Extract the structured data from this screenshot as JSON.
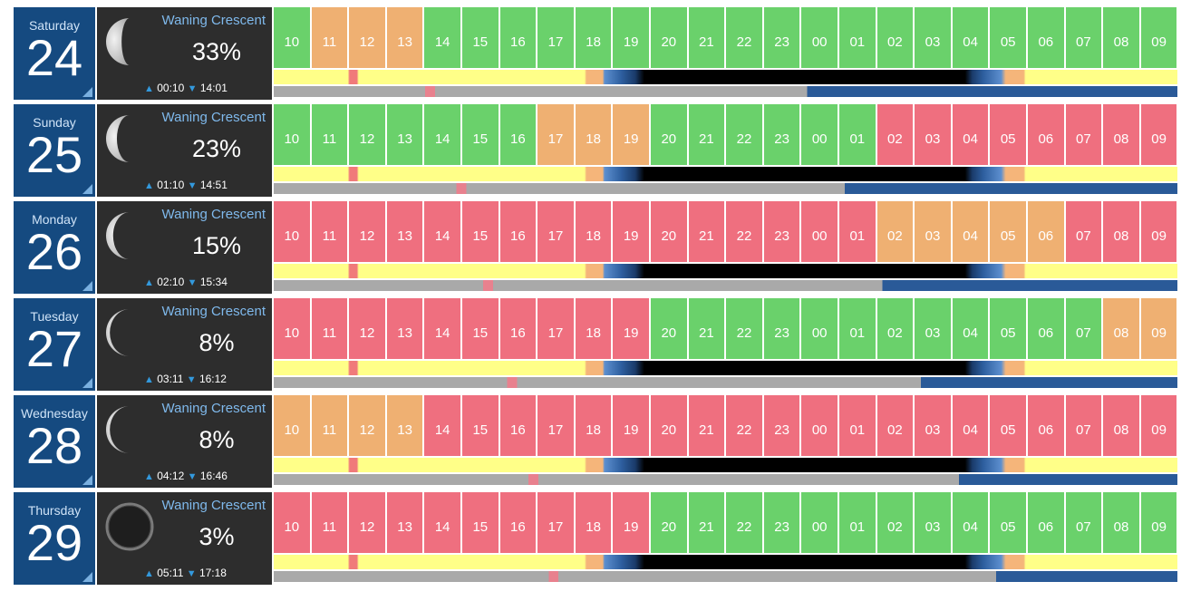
{
  "hours": [
    "10",
    "11",
    "12",
    "13",
    "14",
    "15",
    "16",
    "17",
    "18",
    "19",
    "20",
    "21",
    "22",
    "23",
    "00",
    "01",
    "02",
    "03",
    "04",
    "05",
    "06",
    "07",
    "08",
    "09"
  ],
  "colors": {
    "good": "#6ad16b",
    "fair": "#efb072",
    "poor": "#ef6f7f",
    "date_bg": "#154a80",
    "moon_bg": "#2d2d2d",
    "phase_text": "#7fb9ec",
    "day": "#ffff88",
    "night": "#000000",
    "twilight": "#2d5e9e",
    "moon_up": "#2a5a98",
    "moon_down": "#a9a9a9"
  },
  "days": [
    {
      "weekday": "Saturday",
      "date": "24",
      "phase": "Waning Crescent",
      "illumination": "33%",
      "moonrise": "00:10",
      "moonset": "14:01",
      "moon_icon": "moon-crescent-icon",
      "ratings": [
        "good",
        "fair",
        "fair",
        "fair",
        "good",
        "good",
        "good",
        "good",
        "good",
        "good",
        "good",
        "good",
        "good",
        "good",
        "good",
        "good",
        "good",
        "good",
        "good",
        "good",
        "good",
        "good",
        "good",
        "good"
      ]
    },
    {
      "weekday": "Sunday",
      "date": "25",
      "phase": "Waning Crescent",
      "illumination": "23%",
      "moonrise": "01:10",
      "moonset": "14:51",
      "moon_icon": "moon-crescent-icon",
      "ratings": [
        "good",
        "good",
        "good",
        "good",
        "good",
        "good",
        "good",
        "fair",
        "fair",
        "fair",
        "good",
        "good",
        "good",
        "good",
        "good",
        "good",
        "poor",
        "poor",
        "poor",
        "poor",
        "poor",
        "poor",
        "poor",
        "poor"
      ]
    },
    {
      "weekday": "Monday",
      "date": "26",
      "phase": "Waning Crescent",
      "illumination": "15%",
      "moonrise": "02:10",
      "moonset": "15:34",
      "moon_icon": "moon-crescent-icon",
      "ratings": [
        "poor",
        "poor",
        "poor",
        "poor",
        "poor",
        "poor",
        "poor",
        "poor",
        "poor",
        "poor",
        "poor",
        "poor",
        "poor",
        "poor",
        "poor",
        "poor",
        "fair",
        "fair",
        "fair",
        "fair",
        "fair",
        "poor",
        "poor",
        "poor"
      ]
    },
    {
      "weekday": "Tuesday",
      "date": "27",
      "phase": "Waning Crescent",
      "illumination": "8%",
      "moonrise": "03:11",
      "moonset": "16:12",
      "moon_icon": "moon-crescent-icon",
      "ratings": [
        "poor",
        "poor",
        "poor",
        "poor",
        "poor",
        "poor",
        "poor",
        "poor",
        "poor",
        "poor",
        "good",
        "good",
        "good",
        "good",
        "good",
        "good",
        "good",
        "good",
        "good",
        "good",
        "good",
        "good",
        "fair",
        "fair"
      ]
    },
    {
      "weekday": "Wednesday",
      "date": "28",
      "phase": "Waning Crescent",
      "illumination": "8%",
      "moonrise": "04:12",
      "moonset": "16:46",
      "moon_icon": "moon-crescent-icon",
      "ratings": [
        "fair",
        "fair",
        "fair",
        "fair",
        "poor",
        "poor",
        "poor",
        "poor",
        "poor",
        "poor",
        "poor",
        "poor",
        "poor",
        "poor",
        "poor",
        "poor",
        "poor",
        "poor",
        "poor",
        "poor",
        "poor",
        "poor",
        "poor",
        "poor"
      ]
    },
    {
      "weekday": "Thursday",
      "date": "29",
      "phase": "Waning Crescent",
      "illumination": "3%",
      "moonrise": "05:11",
      "moonset": "17:18",
      "moon_icon": "moon-new-icon",
      "ratings": [
        "poor",
        "poor",
        "poor",
        "poor",
        "poor",
        "poor",
        "poor",
        "poor",
        "poor",
        "poor",
        "good",
        "good",
        "good",
        "good",
        "good",
        "good",
        "good",
        "good",
        "good",
        "good",
        "good",
        "good",
        "good",
        "good"
      ]
    }
  ]
}
